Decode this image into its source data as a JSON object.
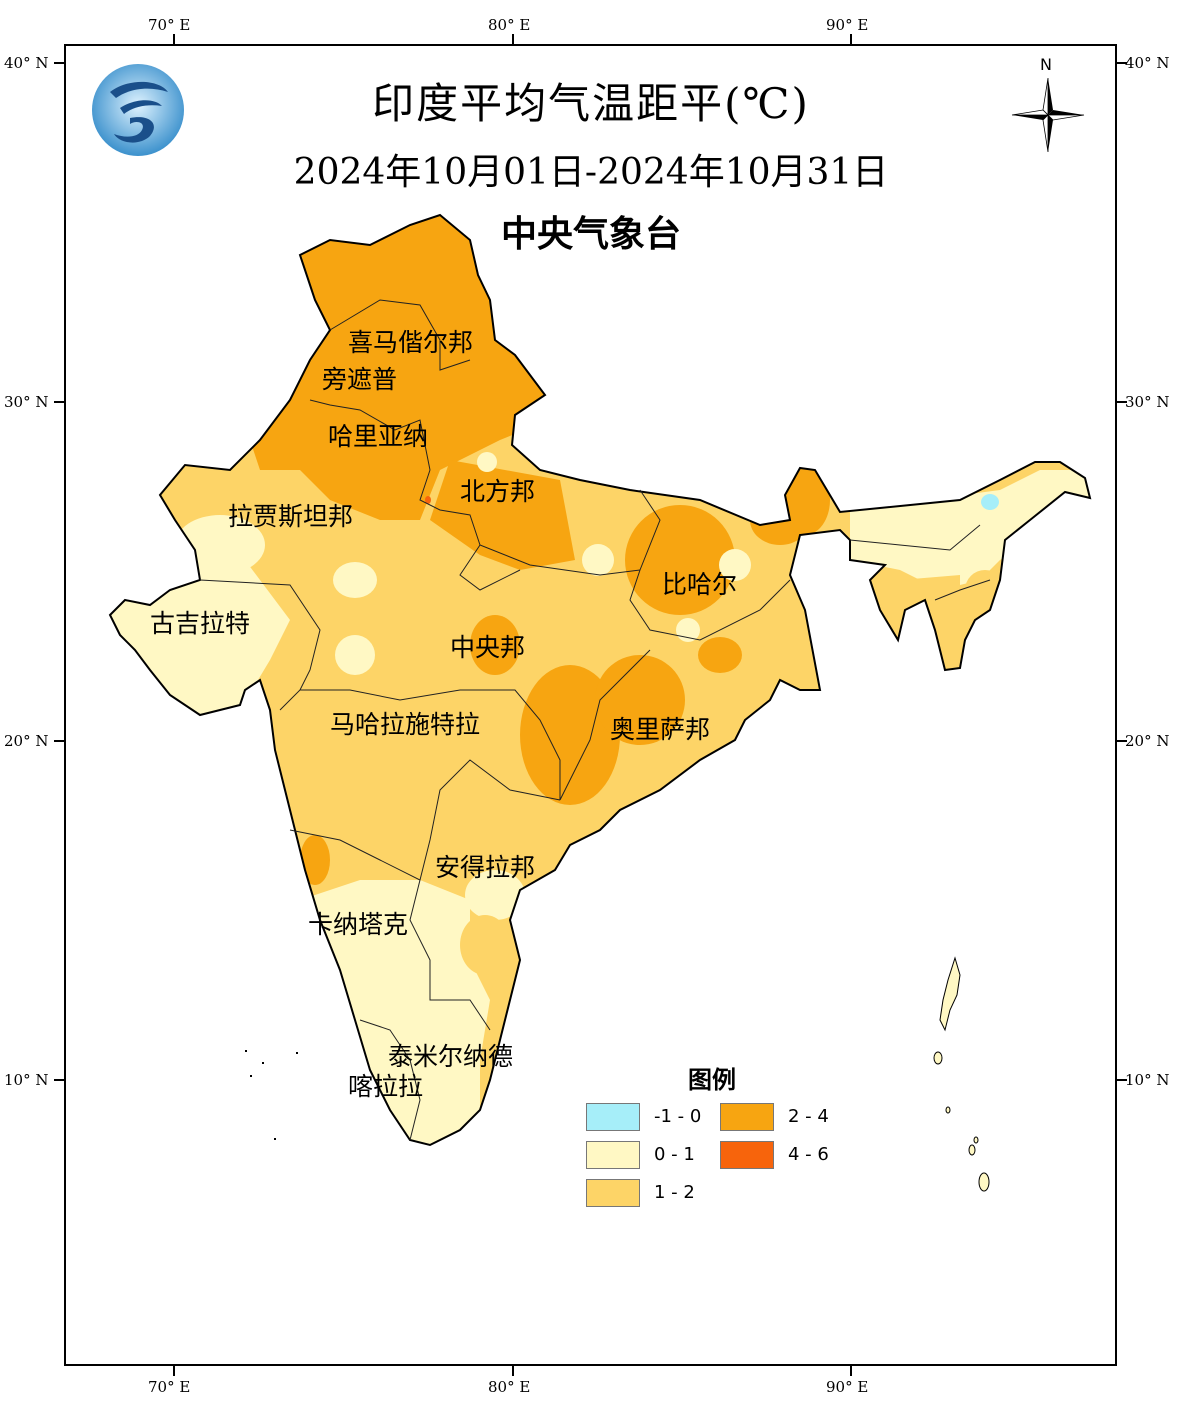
{
  "title": "印度平均气温距平(℃)",
  "subtitle": "2024年10月01日-2024年10月31日",
  "organization": "中央气象台",
  "north_label": "N",
  "axes": {
    "lon_labels": [
      "70° E",
      "80° E",
      "90° E"
    ],
    "lat_labels": [
      "40° N",
      "30° N",
      "20° N",
      "10° N"
    ]
  },
  "regions": [
    {
      "id": "himachal",
      "label": "喜马偕尔邦"
    },
    {
      "id": "punjab",
      "label": "旁遮普"
    },
    {
      "id": "haryana",
      "label": "哈里亚纳"
    },
    {
      "id": "rajasthan",
      "label": "拉贾斯坦邦"
    },
    {
      "id": "uttar",
      "label": "北方邦"
    },
    {
      "id": "bihar",
      "label": "比哈尔"
    },
    {
      "id": "gujarat",
      "label": "古吉拉特"
    },
    {
      "id": "madhya",
      "label": "中央邦"
    },
    {
      "id": "maharashtra",
      "label": "马哈拉施特拉"
    },
    {
      "id": "odisha",
      "label": "奥里萨邦"
    },
    {
      "id": "andhra",
      "label": "安得拉邦"
    },
    {
      "id": "karnataka",
      "label": "卡纳塔克"
    },
    {
      "id": "tamil",
      "label": "泰米尔纳德"
    },
    {
      "id": "kerala",
      "label": "喀拉拉"
    }
  ],
  "legend": {
    "title": "图例",
    "items": [
      {
        "range": "-1 - 0",
        "color": "#a6eef9"
      },
      {
        "range": "0 - 1",
        "color": "#fff8c4"
      },
      {
        "range": "1 - 2",
        "color": "#fdd467"
      },
      {
        "range": "2 - 4",
        "color": "#f7a511"
      },
      {
        "range": "4 - 6",
        "color": "#f7640c"
      }
    ]
  }
}
